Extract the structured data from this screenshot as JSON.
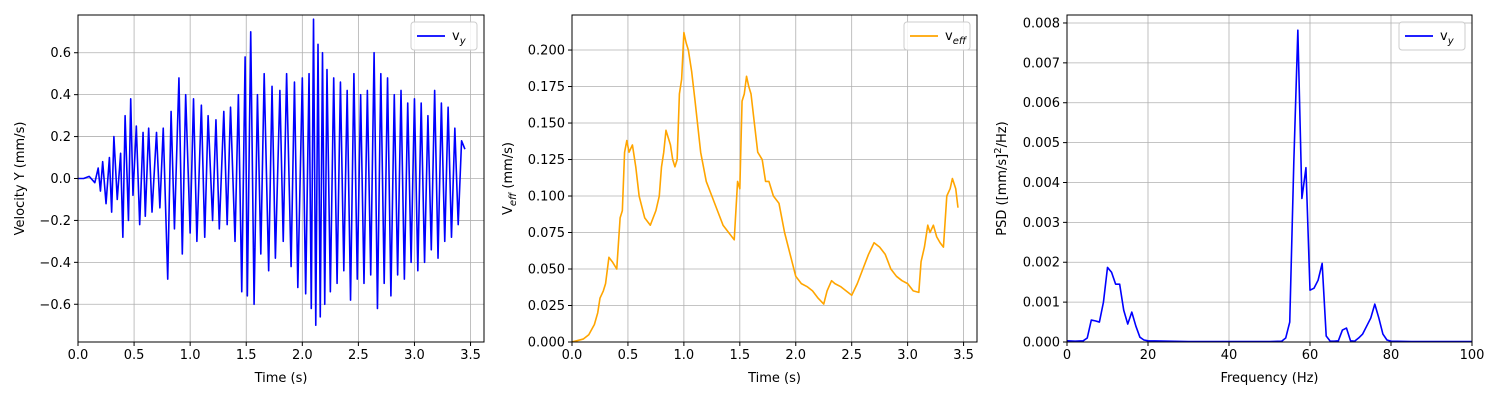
{
  "chart_data": [
    {
      "type": "line",
      "title": "",
      "xlabel": "Time (s)",
      "ylabel": "Velocity Y (mm/s)",
      "xlim": [
        0,
        3.62
      ],
      "ylim": [
        -0.78,
        0.78
      ],
      "xticks": [
        0,
        0.5,
        1.0,
        1.5,
        2.0,
        2.5,
        3.0,
        3.5
      ],
      "xtick_labels": [
        "0.0",
        "0.5",
        "1.0",
        "1.5",
        "2.0",
        "2.5",
        "3.0",
        "3.5"
      ],
      "yticks": [
        -0.6,
        -0.4,
        -0.2,
        0.0,
        0.2,
        0.4,
        0.6
      ],
      "ytick_labels": [
        "−0.6",
        "−0.4",
        "−0.2",
        "0.0",
        "0.2",
        "0.4",
        "0.6"
      ],
      "grid": true,
      "legend_position": "top-right",
      "series": [
        {
          "name": "v",
          "name_sub": "y",
          "color": "#0000ff",
          "x": [
            0.0,
            0.05,
            0.1,
            0.15,
            0.18,
            0.2,
            0.22,
            0.25,
            0.28,
            0.3,
            0.32,
            0.35,
            0.38,
            0.4,
            0.42,
            0.45,
            0.47,
            0.49,
            0.52,
            0.55,
            0.58,
            0.6,
            0.63,
            0.66,
            0.7,
            0.73,
            0.76,
            0.8,
            0.83,
            0.86,
            0.9,
            0.93,
            0.96,
            1.0,
            1.03,
            1.06,
            1.1,
            1.13,
            1.16,
            1.2,
            1.23,
            1.26,
            1.3,
            1.33,
            1.36,
            1.4,
            1.43,
            1.46,
            1.49,
            1.51,
            1.54,
            1.57,
            1.6,
            1.63,
            1.66,
            1.7,
            1.73,
            1.76,
            1.8,
            1.83,
            1.86,
            1.9,
            1.93,
            1.96,
            2.0,
            2.03,
            2.06,
            2.08,
            2.1,
            2.12,
            2.14,
            2.16,
            2.18,
            2.2,
            2.22,
            2.25,
            2.28,
            2.31,
            2.34,
            2.37,
            2.4,
            2.43,
            2.46,
            2.49,
            2.52,
            2.55,
            2.58,
            2.61,
            2.64,
            2.67,
            2.7,
            2.73,
            2.76,
            2.79,
            2.82,
            2.85,
            2.88,
            2.91,
            2.94,
            2.97,
            3.0,
            3.03,
            3.06,
            3.09,
            3.12,
            3.15,
            3.18,
            3.21,
            3.24,
            3.27,
            3.3,
            3.33,
            3.36,
            3.39,
            3.42,
            3.45
          ],
          "values": [
            0.0,
            0.0,
            0.01,
            -0.02,
            0.05,
            -0.06,
            0.08,
            -0.12,
            0.1,
            -0.16,
            0.2,
            -0.1,
            0.12,
            -0.28,
            0.3,
            -0.2,
            0.38,
            -0.08,
            0.25,
            -0.22,
            0.22,
            -0.18,
            0.24,
            -0.16,
            0.22,
            -0.14,
            0.24,
            -0.48,
            0.32,
            -0.24,
            0.48,
            -0.36,
            0.4,
            -0.26,
            0.38,
            -0.3,
            0.35,
            -0.28,
            0.3,
            -0.2,
            0.28,
            -0.24,
            0.32,
            -0.22,
            0.34,
            -0.3,
            0.4,
            -0.54,
            0.58,
            -0.56,
            0.7,
            -0.6,
            0.4,
            -0.36,
            0.5,
            -0.44,
            0.44,
            -0.38,
            0.42,
            -0.3,
            0.5,
            -0.42,
            0.46,
            -0.52,
            0.48,
            -0.55,
            0.5,
            -0.62,
            0.76,
            -0.7,
            0.64,
            -0.66,
            0.6,
            -0.6,
            0.52,
            -0.54,
            0.48,
            -0.5,
            0.46,
            -0.44,
            0.42,
            -0.58,
            0.5,
            -0.48,
            0.4,
            -0.5,
            0.42,
            -0.46,
            0.6,
            -0.62,
            0.5,
            -0.5,
            0.48,
            -0.56,
            0.4,
            -0.46,
            0.42,
            -0.48,
            0.36,
            -0.4,
            0.38,
            -0.44,
            0.36,
            -0.4,
            0.3,
            -0.34,
            0.42,
            -0.38,
            0.36,
            -0.3,
            0.34,
            -0.28,
            0.24,
            -0.22,
            0.18,
            0.14
          ]
        }
      ]
    },
    {
      "type": "line",
      "title": "",
      "xlabel": "Time (s)",
      "ylabel": "V",
      "ylabel_sub": "eff",
      "ylabel_suffix": " (mm/s)",
      "xlim": [
        0,
        3.62
      ],
      "ylim": [
        0,
        0.224
      ],
      "xticks": [
        0,
        0.5,
        1.0,
        1.5,
        2.0,
        2.5,
        3.0,
        3.5
      ],
      "xtick_labels": [
        "0.0",
        "0.5",
        "1.0",
        "1.5",
        "2.0",
        "2.5",
        "3.0",
        "3.5"
      ],
      "yticks": [
        0,
        0.025,
        0.05,
        0.075,
        0.1,
        0.125,
        0.15,
        0.175,
        0.2
      ],
      "ytick_labels": [
        "0.000",
        "0.025",
        "0.050",
        "0.075",
        "0.100",
        "0.125",
        "0.150",
        "0.175",
        "0.200"
      ],
      "grid": true,
      "legend_position": "top-right",
      "series": [
        {
          "name": "v",
          "name_sub": "eff",
          "color": "#ffa500",
          "x": [
            0.0,
            0.1,
            0.15,
            0.2,
            0.23,
            0.25,
            0.28,
            0.3,
            0.33,
            0.36,
            0.4,
            0.43,
            0.45,
            0.47,
            0.49,
            0.51,
            0.54,
            0.57,
            0.6,
            0.65,
            0.7,
            0.75,
            0.78,
            0.8,
            0.82,
            0.84,
            0.86,
            0.88,
            0.9,
            0.92,
            0.94,
            0.96,
            0.98,
            1.0,
            1.02,
            1.04,
            1.07,
            1.1,
            1.15,
            1.2,
            1.25,
            1.3,
            1.35,
            1.4,
            1.45,
            1.48,
            1.5,
            1.52,
            1.54,
            1.56,
            1.58,
            1.6,
            1.63,
            1.66,
            1.7,
            1.73,
            1.76,
            1.8,
            1.85,
            1.9,
            1.95,
            2.0,
            2.05,
            2.1,
            2.15,
            2.2,
            2.25,
            2.28,
            2.32,
            2.35,
            2.4,
            2.45,
            2.5,
            2.55,
            2.6,
            2.65,
            2.7,
            2.75,
            2.8,
            2.85,
            2.9,
            2.95,
            3.0,
            3.05,
            3.1,
            3.12,
            3.15,
            3.18,
            3.2,
            3.23,
            3.26,
            3.29,
            3.32,
            3.35,
            3.38,
            3.4,
            3.43,
            3.45
          ],
          "values": [
            0.0,
            0.002,
            0.005,
            0.012,
            0.02,
            0.03,
            0.035,
            0.04,
            0.058,
            0.055,
            0.05,
            0.085,
            0.09,
            0.13,
            0.138,
            0.13,
            0.135,
            0.12,
            0.1,
            0.085,
            0.08,
            0.09,
            0.1,
            0.12,
            0.13,
            0.145,
            0.14,
            0.135,
            0.125,
            0.12,
            0.125,
            0.17,
            0.18,
            0.212,
            0.205,
            0.2,
            0.185,
            0.165,
            0.13,
            0.11,
            0.1,
            0.09,
            0.08,
            0.075,
            0.07,
            0.11,
            0.105,
            0.165,
            0.17,
            0.182,
            0.175,
            0.17,
            0.15,
            0.13,
            0.125,
            0.11,
            0.11,
            0.1,
            0.095,
            0.075,
            0.06,
            0.045,
            0.04,
            0.038,
            0.035,
            0.03,
            0.026,
            0.035,
            0.042,
            0.04,
            0.038,
            0.035,
            0.032,
            0.04,
            0.05,
            0.06,
            0.068,
            0.065,
            0.06,
            0.05,
            0.045,
            0.042,
            0.04,
            0.035,
            0.034,
            0.055,
            0.065,
            0.08,
            0.075,
            0.08,
            0.072,
            0.068,
            0.065,
            0.1,
            0.105,
            0.112,
            0.105,
            0.092
          ]
        }
      ]
    },
    {
      "type": "line",
      "title": "",
      "xlabel": "Frequency (Hz)",
      "ylabel": "PSD ([mm/s]",
      "ylabel_sup": "2",
      "ylabel_suffix": "/Hz)",
      "xlim": [
        0,
        100
      ],
      "ylim": [
        0,
        0.0082
      ],
      "xticks": [
        0,
        20,
        40,
        60,
        80,
        100
      ],
      "xtick_labels": [
        "0",
        "20",
        "40",
        "60",
        "80",
        "100"
      ],
      "yticks": [
        0,
        0.001,
        0.002,
        0.003,
        0.004,
        0.005,
        0.006,
        0.007,
        0.008
      ],
      "ytick_labels": [
        "0.000",
        "0.001",
        "0.002",
        "0.003",
        "0.004",
        "0.005",
        "0.006",
        "0.007",
        "0.008"
      ],
      "grid": true,
      "legend_position": "top-right",
      "series": [
        {
          "name": "v",
          "name_sub": "y",
          "color": "#0000ff",
          "x": [
            0,
            2,
            4,
            5,
            6,
            7,
            8,
            9,
            10,
            11,
            12,
            13,
            14,
            15,
            16,
            17,
            18,
            19,
            20,
            25,
            30,
            40,
            50,
            53,
            54,
            55,
            56,
            57,
            58,
            59,
            60,
            61,
            62,
            63,
            64,
            65,
            66,
            67,
            68,
            69,
            70,
            71,
            72,
            73,
            74,
            75,
            76,
            77,
            78,
            79,
            80,
            85,
            90,
            100
          ],
          "values": [
            3e-05,
            2e-05,
            3e-05,
            0.0001,
            0.00055,
            0.00053,
            0.0005,
            0.001,
            0.00187,
            0.00175,
            0.00145,
            0.00145,
            0.0008,
            0.00045,
            0.00075,
            0.0004,
            0.00012,
            5e-05,
            3e-05,
            2e-05,
            1e-05,
            1e-05,
            1e-05,
            2e-05,
            0.0001,
            0.0005,
            0.0045,
            0.00782,
            0.0036,
            0.00437,
            0.0013,
            0.00135,
            0.00155,
            0.00197,
            0.00015,
            2e-05,
            2e-05,
            3e-05,
            0.0003,
            0.00035,
            3e-05,
            2e-05,
            0.0001,
            0.0002,
            0.0004,
            0.0006,
            0.00095,
            0.0006,
            0.0002,
            5e-05,
            2e-05,
            1e-05,
            1e-05,
            1e-05
          ]
        }
      ]
    }
  ]
}
